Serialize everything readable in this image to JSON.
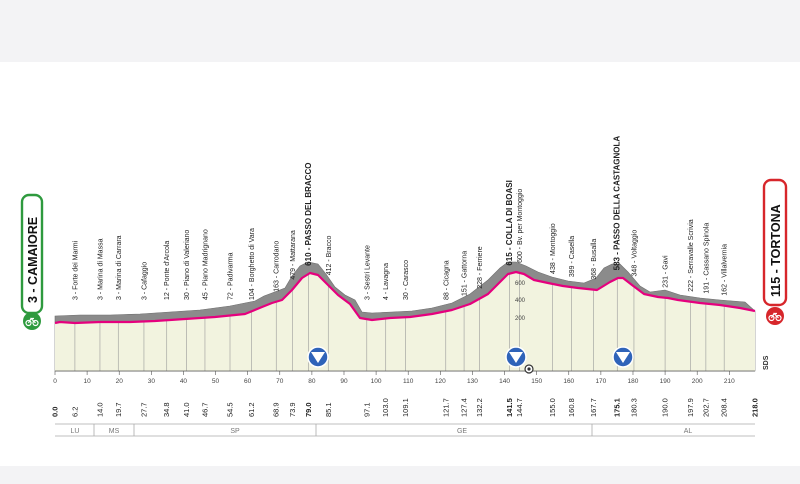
{
  "colors": {
    "accent": "#e5007e",
    "start_green": "#2e9a3e",
    "finish_red": "#d7262b",
    "relief": "#8b8b8b",
    "field": "#f2f3df",
    "badge_blue": "#2f63b9"
  },
  "start": {
    "label": "3 - CAMAIORE"
  },
  "finish": {
    "label": "115 - TORTONA"
  },
  "logo": "SDS",
  "elev_ticks": [
    "600",
    "400",
    "200"
  ],
  "axis": {
    "km_labels": [
      "0",
      "10",
      "20",
      "30",
      "40",
      "50",
      "60",
      "70",
      "80",
      "90",
      "100",
      "110",
      "120",
      "130",
      "140",
      "150",
      "160",
      "170",
      "180",
      "190",
      "200",
      "210"
    ],
    "distances": [
      "0.0",
      "6.2",
      "14.0",
      "19.7",
      "27.7",
      "34.8",
      "41.0",
      "46.7",
      "54.5",
      "61.2",
      "68.9",
      "73.9",
      "79.0",
      "85.1",
      "97.1",
      "103.0",
      "109.1",
      "121.7",
      "127.4",
      "132.2",
      "141.5",
      "144.7",
      "155.0",
      "160.8",
      "167.7",
      "175.1",
      "180.3",
      "190.0",
      "197.9",
      "202.7",
      "208.4",
      "218.0"
    ],
    "regions": [
      "LU",
      "MS",
      "SP",
      "GE",
      "AL"
    ]
  },
  "waypoints": [
    {
      "label": "3 - Forte dei Marmi"
    },
    {
      "label": "3 - Marina di Massa"
    },
    {
      "label": "3 - Marina di Carrara"
    },
    {
      "label": "3 - Cafaggio"
    },
    {
      "label": "12 - Ponte d'Arcola"
    },
    {
      "label": "30 - Piano di Valeriano"
    },
    {
      "label": "45 - Piano Madrignano"
    },
    {
      "label": "72 - Padivarma"
    },
    {
      "label": "104 - Borghetto di Vara"
    },
    {
      "label": "163 - Carrodano"
    },
    {
      "label": "479 - Mattarana"
    },
    {
      "label": "610 - PASSO DEL BRACCO"
    },
    {
      "label": "412 - Bracco"
    },
    {
      "label": "3 - Sestri Levante"
    },
    {
      "label": "4 - Lavagna"
    },
    {
      "label": "30 - Carasco"
    },
    {
      "label": "88 - Cicagna"
    },
    {
      "label": "151 - Gattorna"
    },
    {
      "label": "228 - Ferriere"
    },
    {
      "label": "615 - COLLA DI BOASI"
    },
    {
      "label": "600 - Bv. per Montoggio"
    },
    {
      "label": "438 - Montoggio"
    },
    {
      "label": "399 - Casella"
    },
    {
      "label": "368 - Busalla"
    },
    {
      "label": "583 - PASSO DELLA CASTAGNOLA"
    },
    {
      "label": "348 - Voltaggio"
    },
    {
      "label": "231 - Gavi"
    },
    {
      "label": "222 - Serravalle Scrivia"
    },
    {
      "label": "191 - Cassano Spinola"
    },
    {
      "label": "162 - Villalvernia"
    }
  ]
}
